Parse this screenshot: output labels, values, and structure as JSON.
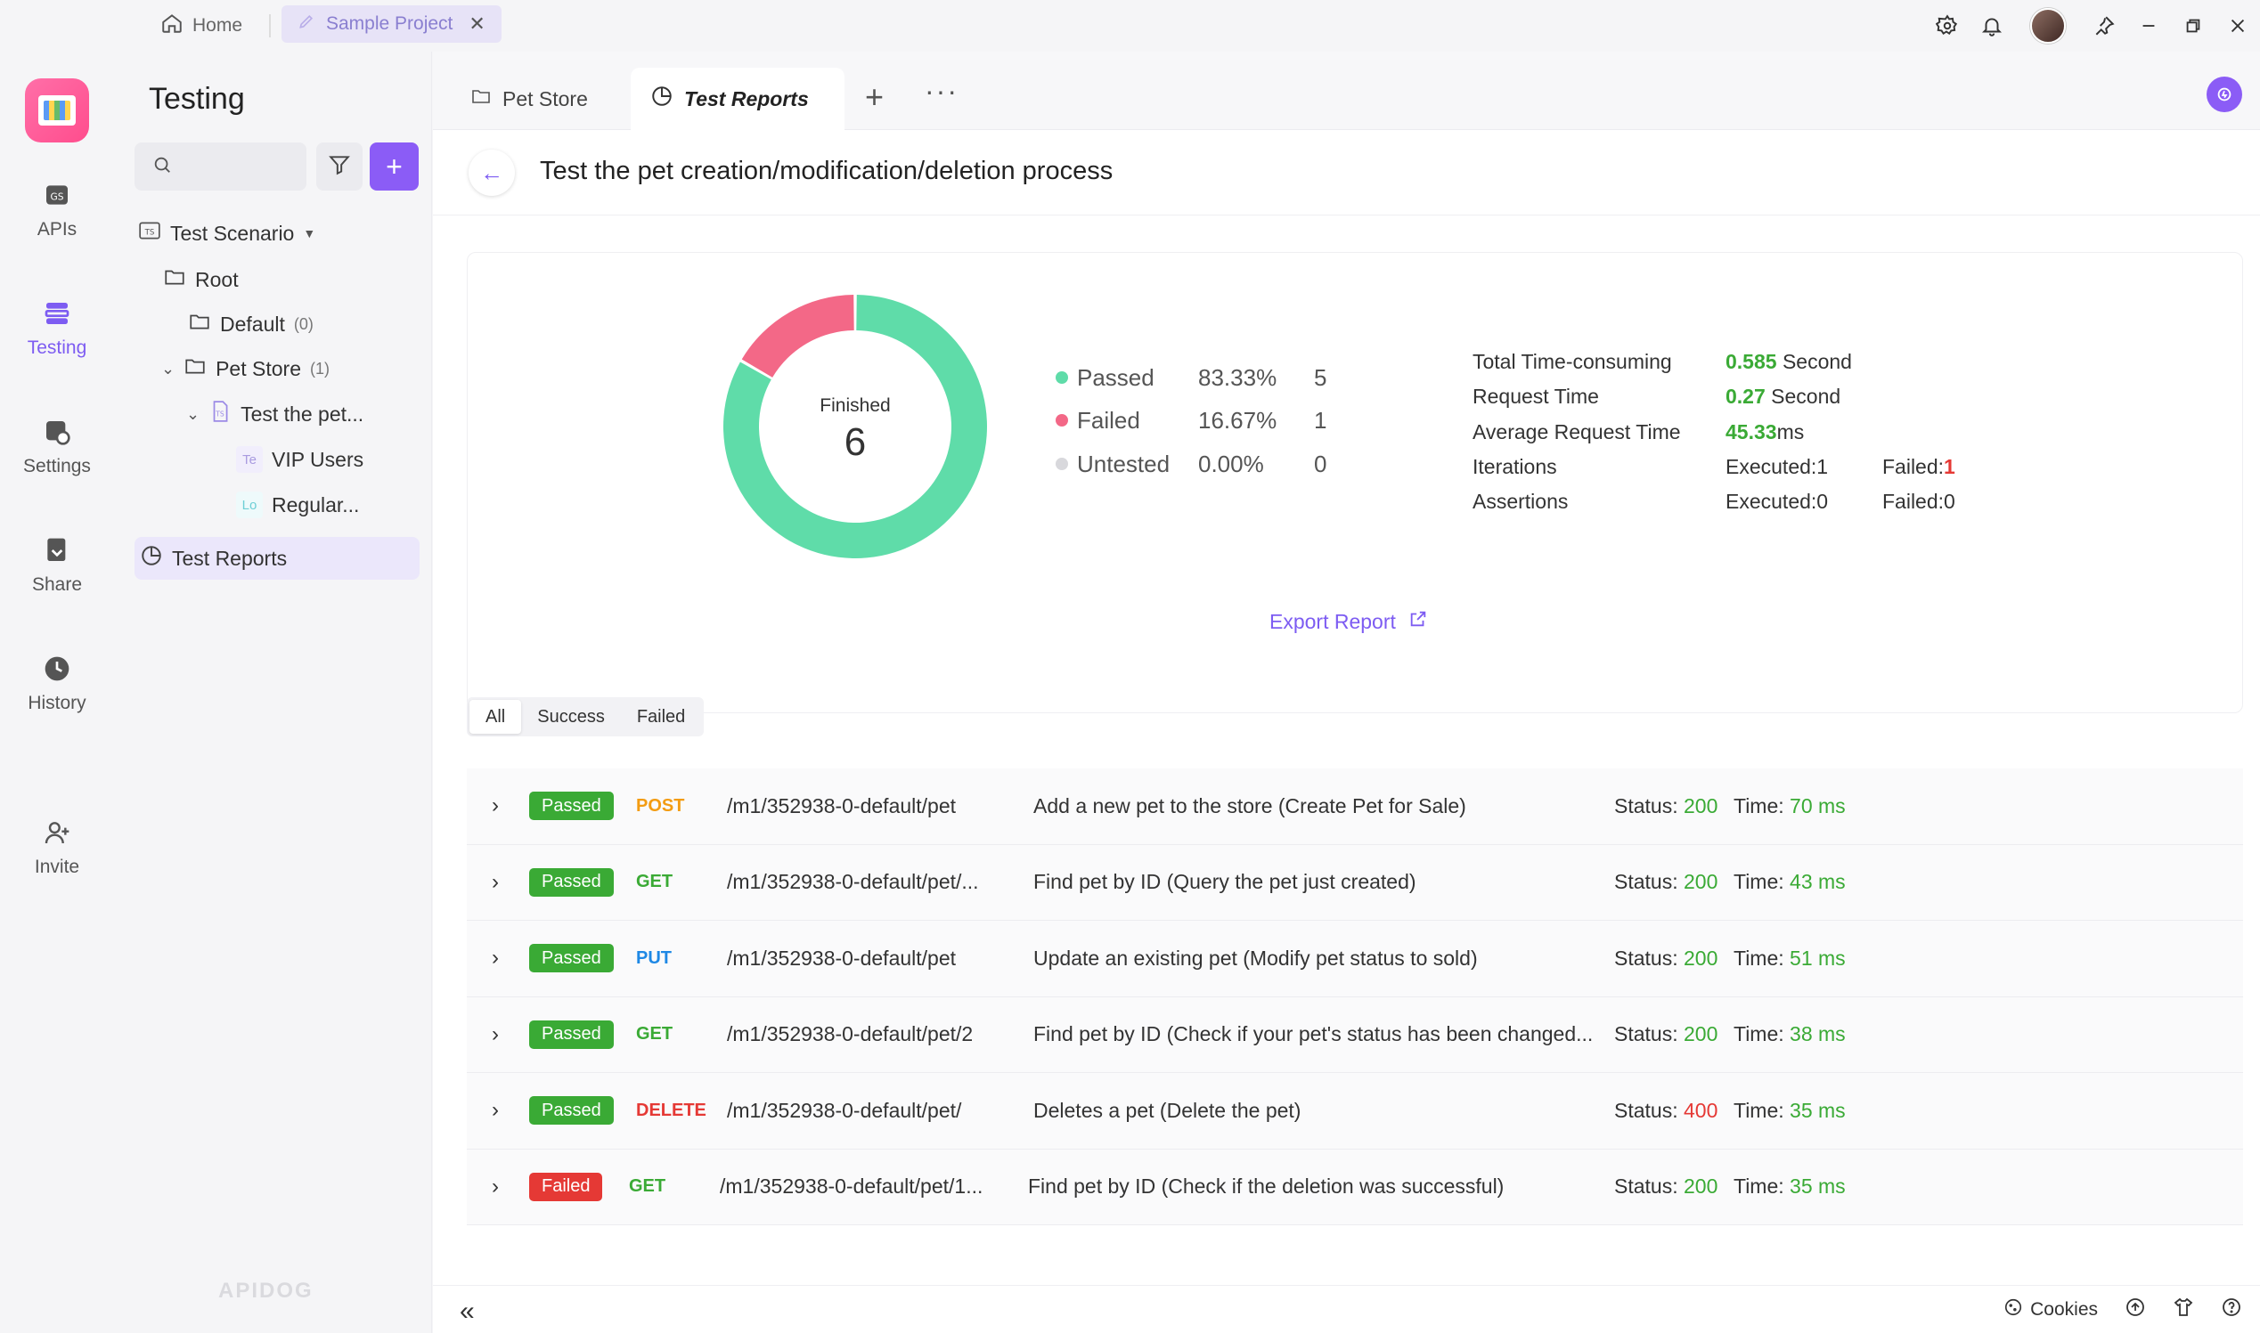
{
  "titlebar": {
    "home_label": "Home",
    "project_tab_label": "Sample Project",
    "close_glyph": "✕"
  },
  "rail": {
    "items": [
      {
        "label": "APIs"
      },
      {
        "label": "Testing"
      },
      {
        "label": "Settings"
      },
      {
        "label": "Share"
      },
      {
        "label": "History"
      },
      {
        "label": "Invite"
      }
    ]
  },
  "sidebar": {
    "title": "Testing",
    "tree": {
      "scenario": "Test Scenario",
      "root": "Root",
      "default": "Default",
      "default_count": "(0)",
      "petstore": "Pet Store",
      "petstore_count": "(1)",
      "test": "Test the pet...",
      "vip_badge": "Te",
      "vip": "VIP Users",
      "regular_badge": "Lo",
      "regular": "Regular...",
      "reports": "Test Reports"
    },
    "watermark": "APIDOG"
  },
  "tabs": [
    {
      "label": "Pet Store"
    },
    {
      "label": "Test Reports"
    }
  ],
  "page": {
    "title": "Test the pet creation/modification/deletion process"
  },
  "summary": {
    "donut_label": "Finished",
    "donut_total": "6",
    "legend": [
      {
        "name": "Passed",
        "pct": "83.33%",
        "num": "5",
        "color": "#5fdca9"
      },
      {
        "name": "Failed",
        "pct": "16.67%",
        "num": "1",
        "color": "#f36887"
      },
      {
        "name": "Untested",
        "pct": "0.00%",
        "num": "0",
        "color": "#d8d8dc"
      }
    ],
    "stats": {
      "total_label": "Total Time-consuming",
      "total_value": "0.585",
      "total_unit": " Second",
      "request_label": "Request Time",
      "request_value": "0.27",
      "request_unit": " Second",
      "avg_label": "Average Request Time",
      "avg_value": "45.33",
      "avg_unit": "ms",
      "iter_label": "Iterations",
      "iter_exec": "Executed:1",
      "iter_failed_label": "Failed:",
      "iter_failed_value": "1",
      "assert_label": "Assertions",
      "assert_exec": "Executed:0",
      "assert_failed": "Failed:0"
    },
    "export_label": "Export Report"
  },
  "filters": [
    "All",
    "Success",
    "Failed"
  ],
  "results": [
    {
      "result": "Passed",
      "method": "POST",
      "path": "/m1/352938-0-default/pet",
      "desc": "Add a new pet to the store (Create Pet for Sale)",
      "status": "200",
      "time": "70 ms"
    },
    {
      "result": "Passed",
      "method": "GET",
      "path": "/m1/352938-0-default/pet/...",
      "desc": "Find pet by ID (Query the pet just created)",
      "status": "200",
      "time": "43 ms"
    },
    {
      "result": "Passed",
      "method": "PUT",
      "path": "/m1/352938-0-default/pet",
      "desc": "Update an existing pet (Modify pet status to sold)",
      "status": "200",
      "time": "51 ms"
    },
    {
      "result": "Passed",
      "method": "GET",
      "path": "/m1/352938-0-default/pet/2",
      "desc": "Find pet by ID (Check if your pet's status has been changed...",
      "status": "200",
      "time": "38 ms"
    },
    {
      "result": "Passed",
      "method": "DELETE",
      "path": "/m1/352938-0-default/pet/",
      "desc": "Deletes a pet (Delete the pet)",
      "status": "400",
      "time": "35 ms"
    },
    {
      "result": "Failed",
      "method": "GET",
      "path": "/m1/352938-0-default/pet/1...",
      "desc": "Find pet by ID (Check if the deletion was successful)",
      "status": "200",
      "time": "35 ms"
    }
  ],
  "row_labels": {
    "status": "Status: ",
    "time": "Time: "
  },
  "bottombar": {
    "cookies": "Cookies"
  }
}
